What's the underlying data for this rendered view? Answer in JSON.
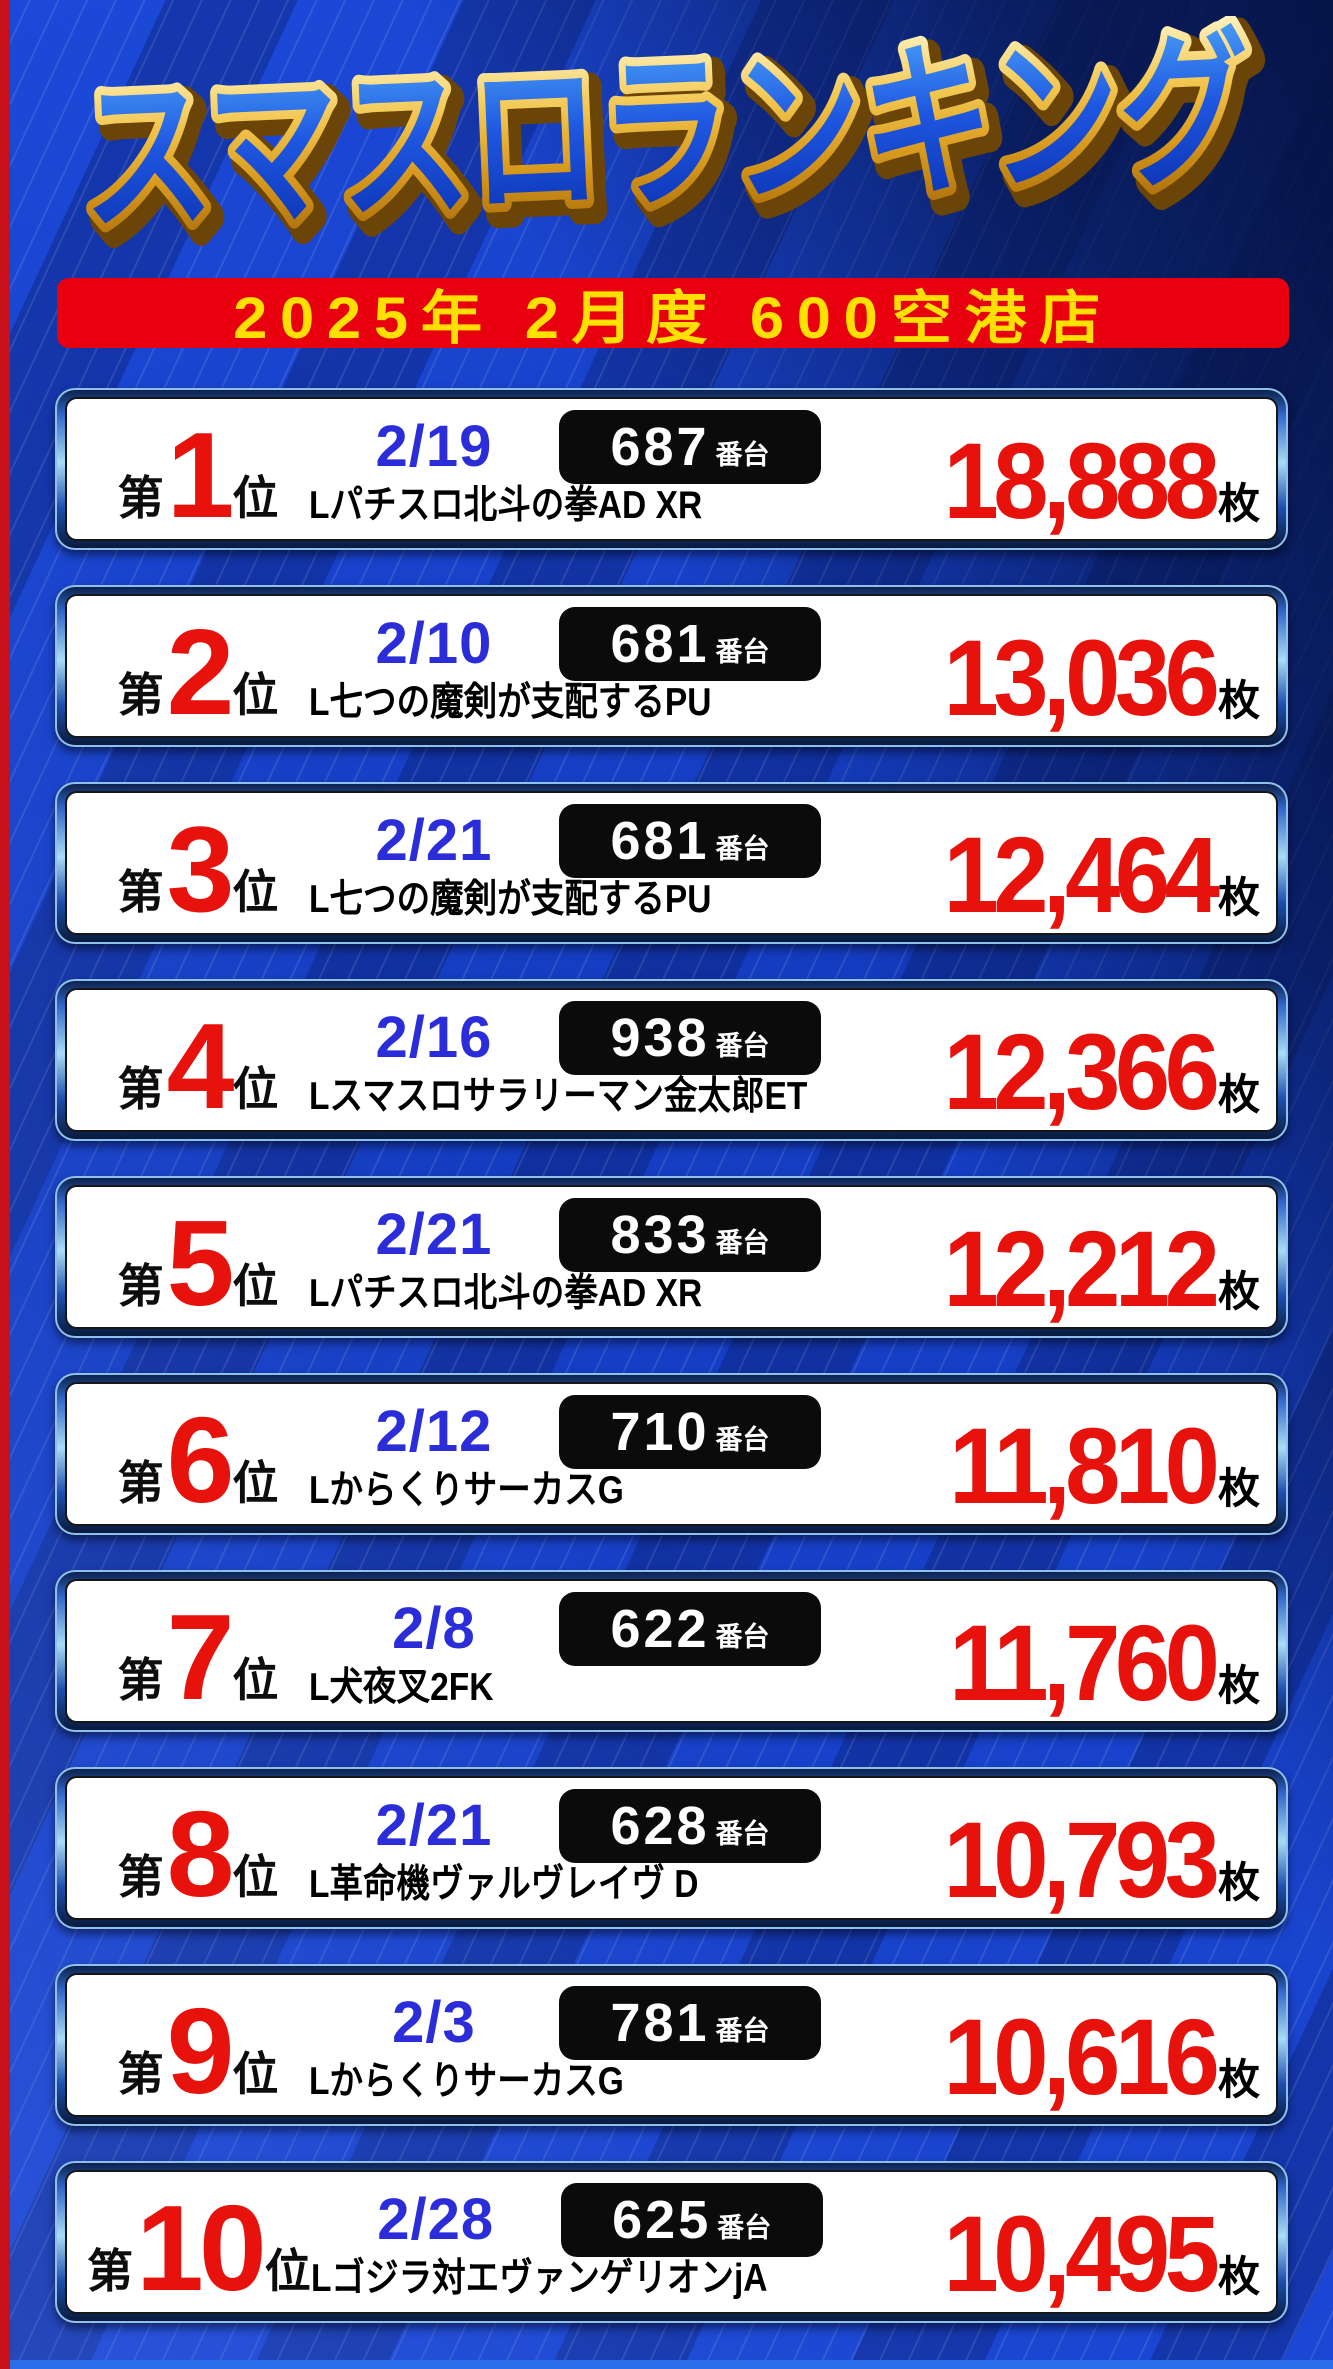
{
  "title": "スマスロランキング",
  "banner": {
    "text": "2025年 2月度 600空港店"
  },
  "labels": {
    "rank_prefix": "第",
    "rank_suffix": "位",
    "machine_unit": "番台",
    "coin_unit": "枚"
  },
  "colors": {
    "background_blue": "#1843cf",
    "edge_red": "#c8101a",
    "banner_red": "#e8000f",
    "banner_yellow": "#ffe000",
    "date_blue": "#2b2ed8",
    "value_red": "#e8120c",
    "badge_black": "#0b0b0b",
    "title_gold": "#e8b73a",
    "title_blue": "#1e57e0"
  },
  "rankings": [
    {
      "rank": "1",
      "date": "2/19",
      "machine_no": "687",
      "machine": "Lパチスロ北斗の拳AD XR",
      "coins": "18,888"
    },
    {
      "rank": "2",
      "date": "2/10",
      "machine_no": "681",
      "machine": "L七つの魔剣が支配するPU",
      "coins": "13,036"
    },
    {
      "rank": "3",
      "date": "2/21",
      "machine_no": "681",
      "machine": "L七つの魔剣が支配するPU",
      "coins": "12,464"
    },
    {
      "rank": "4",
      "date": "2/16",
      "machine_no": "938",
      "machine": "Lスマスロサラリーマン金太郎ET",
      "coins": "12,366"
    },
    {
      "rank": "5",
      "date": "2/21",
      "machine_no": "833",
      "machine": "Lパチスロ北斗の拳AD XR",
      "coins": "12,212"
    },
    {
      "rank": "6",
      "date": "2/12",
      "machine_no": "710",
      "machine": "LからくりサーカスG",
      "coins": "11,810"
    },
    {
      "rank": "7",
      "date": "2/8",
      "machine_no": "622",
      "machine": "L犬夜叉2FK",
      "coins": "11,760"
    },
    {
      "rank": "8",
      "date": "2/21",
      "machine_no": "628",
      "machine": "L革命機ヴァルヴレイヴ D",
      "coins": "10,793"
    },
    {
      "rank": "9",
      "date": "2/3",
      "machine_no": "781",
      "machine": "LからくりサーカスG",
      "coins": "10,616"
    },
    {
      "rank": "10",
      "date": "2/28",
      "machine_no": "625",
      "machine": "Lゴジラ対エヴァンゲリオンjA",
      "coins": "10,495"
    }
  ]
}
